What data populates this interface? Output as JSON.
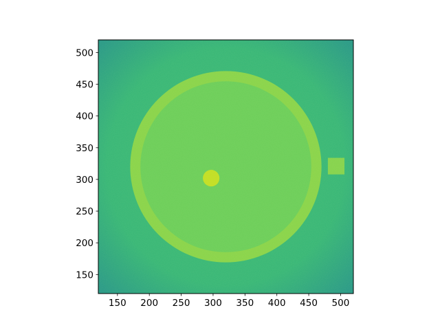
{
  "chart_data": {
    "type": "heatmap",
    "title": "",
    "xlabel": "",
    "ylabel": "",
    "xlim": [
      120,
      520
    ],
    "ylim": [
      120,
      520
    ],
    "xticks": [
      150,
      200,
      250,
      300,
      350,
      400,
      450,
      500
    ],
    "yticks": [
      150,
      200,
      250,
      300,
      350,
      400,
      450,
      500
    ],
    "colormap": "viridis",
    "colors": {
      "background_center": "#3dbb74",
      "background_corner": "#25948a",
      "ring": "#8ad449",
      "disk_interior": "#6cce59",
      "small_dot": "#c5df22",
      "square": "#86d34c"
    },
    "features": [
      {
        "kind": "ring",
        "cx": 320,
        "cy": 320,
        "outer_r": 150,
        "inner_r": 134
      },
      {
        "kind": "disk",
        "cx": 320,
        "cy": 320,
        "r": 134
      },
      {
        "kind": "dot",
        "cx": 297,
        "cy": 302,
        "r": 13
      },
      {
        "kind": "square",
        "x0": 480,
        "x1": 506,
        "y0": 308,
        "y1": 334
      }
    ]
  }
}
